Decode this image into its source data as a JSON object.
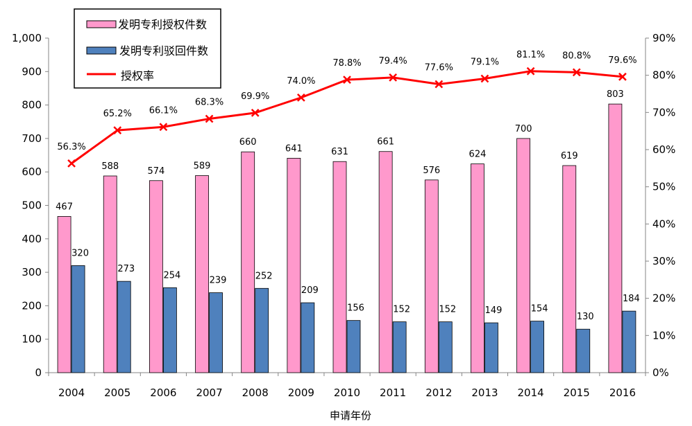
{
  "chart_data": {
    "type": "bar",
    "categories": [
      "2004",
      "2005",
      "2006",
      "2007",
      "2008",
      "2009",
      "2010",
      "2011",
      "2012",
      "2013",
      "2014",
      "2015",
      "2016"
    ],
    "series": [
      {
        "name": "发明专利授权件数",
        "type": "bar",
        "axis": "left",
        "color": "#FF99CC",
        "values": [
          467,
          588,
          574,
          589,
          660,
          641,
          631,
          661,
          576,
          624,
          700,
          619,
          803
        ]
      },
      {
        "name": "发明专利驳回件数",
        "type": "bar",
        "axis": "left",
        "color": "#4F81BD",
        "values": [
          320,
          273,
          254,
          239,
          252,
          209,
          156,
          152,
          152,
          149,
          154,
          130,
          184
        ]
      },
      {
        "name": "授权率",
        "type": "line",
        "axis": "right",
        "color": "#FF0000",
        "marker": "x",
        "values": [
          56.3,
          65.2,
          66.1,
          68.3,
          69.9,
          74.0,
          78.8,
          79.4,
          77.6,
          79.1,
          81.1,
          80.8,
          79.6
        ],
        "labels": [
          "56.3%",
          "65.2%",
          "66.1%",
          "68.3%",
          "69.9%",
          "74.0%",
          "78.8%",
          "79.4%",
          "77.6%",
          "79.1%",
          "81.1%",
          "80.8%",
          "79.6%"
        ]
      }
    ],
    "xlabel": "申请年份",
    "ylim": [
      0,
      1000
    ],
    "yticks": [
      "0",
      "100",
      "200",
      "300",
      "400",
      "500",
      "600",
      "700",
      "800",
      "900",
      "1,000"
    ],
    "y2lim": [
      0,
      90
    ],
    "y2ticks": [
      "0%",
      "10%",
      "20%",
      "30%",
      "40%",
      "50%",
      "60%",
      "70%",
      "80%",
      "90%"
    ],
    "grid": false,
    "legend_position": "top-left"
  }
}
